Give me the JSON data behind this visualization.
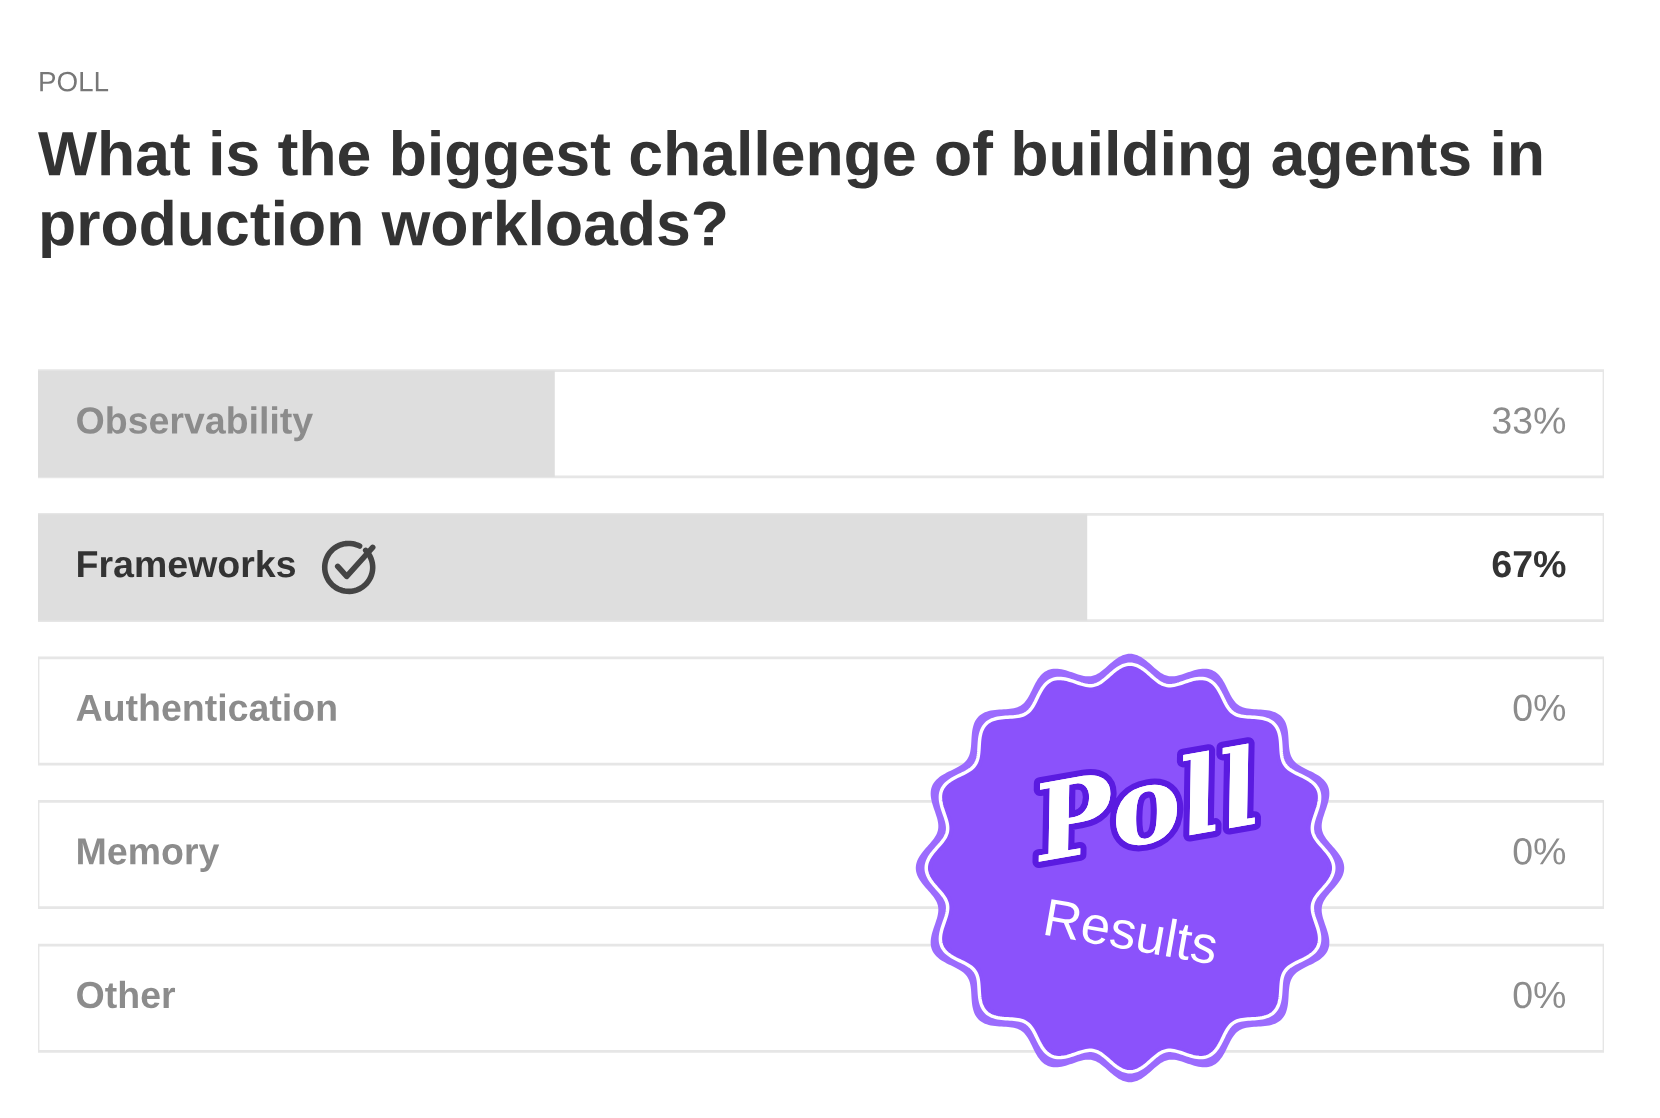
{
  "chart_data": {
    "type": "bar",
    "orientation": "horizontal",
    "subtitle": "POLL",
    "title": "What is the biggest challenge of building agents in production workloads?",
    "categories": [
      "Observability",
      "Frameworks",
      "Authentication",
      "Memory",
      "Other"
    ],
    "values": [
      33,
      67,
      0,
      0,
      0
    ],
    "value_labels": [
      "33%",
      "67%",
      "0%",
      "0%",
      "0%"
    ],
    "colors": [
      "#dedede",
      "#dedede",
      "#dedede",
      "#dedede",
      "#dedede"
    ],
    "xlim": [
      0,
      100
    ],
    "tick_labels": false,
    "annotations": [
      "Poll",
      "Results"
    ]
  }
}
